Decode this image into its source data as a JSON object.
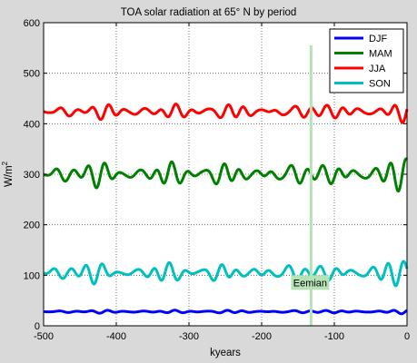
{
  "chart_data": {
    "type": "line",
    "title": "TOA solar radiation at 65° N by period",
    "xlabel": "kyears",
    "ylabel": "W/m",
    "ylabel_sup": "2",
    "xlim": [
      -500,
      0
    ],
    "ylim": [
      0,
      600
    ],
    "xticks": [
      -500,
      -400,
      -300,
      -200,
      -100,
      0
    ],
    "yticks": [
      0,
      100,
      200,
      300,
      400,
      500,
      600
    ],
    "grid": true,
    "legend_position": "top-right",
    "background": "#d9d9d9",
    "plot_background": "#ffffff",
    "series": [
      {
        "name": "DJF",
        "color": "#0000ff",
        "mean": 28,
        "amp": 2.5
      },
      {
        "name": "MAM",
        "color": "#008000",
        "mean": 300,
        "amp": 20
      },
      {
        "name": "JJA",
        "color": "#ff0000",
        "mean": 424,
        "amp": 13
      },
      {
        "name": "SON",
        "color": "#00bfbf",
        "mean": 105,
        "amp": 16
      }
    ],
    "annotation": {
      "label": "Eemian",
      "x": -132,
      "line_color": "#b6e3b6",
      "box_color": "#b6e3b6"
    }
  }
}
